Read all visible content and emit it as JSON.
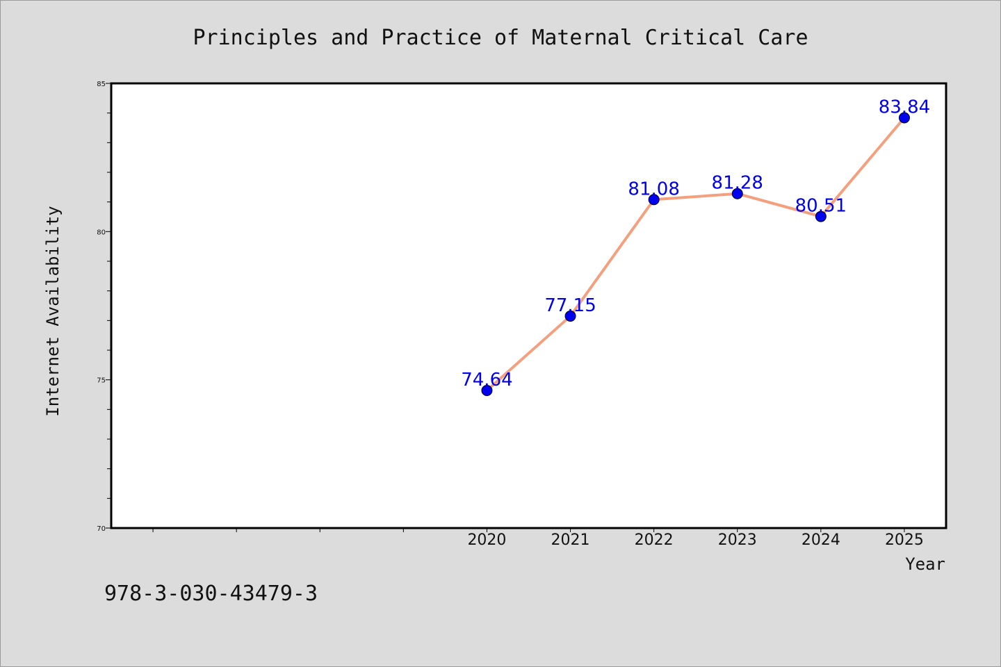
{
  "chart_data": {
    "type": "line",
    "title": "Principles and Practice of Maternal Critical Care",
    "xlabel": "Year",
    "ylabel": "Internet Availability",
    "x": [
      "2020",
      "2021",
      "2022",
      "2023",
      "2024",
      "2025"
    ],
    "series": [
      {
        "values": [
          74.64,
          77.15,
          81.08,
          81.28,
          80.51,
          83.84
        ],
        "labels": [
          "74.64",
          "77.15",
          "81.08",
          "81.28",
          "80.51",
          "83.84"
        ]
      }
    ],
    "ylim": [
      70,
      85
    ],
    "yticks": [
      "70",
      "75",
      "80",
      "85"
    ],
    "xlim": [
      2015.5,
      2025.5
    ],
    "grid": false,
    "line_color": "#f4a07e",
    "marker_color": "#0000ee",
    "label_color": "#0000ee"
  },
  "footer": {
    "isbn": "978-3-030-43479-3"
  }
}
